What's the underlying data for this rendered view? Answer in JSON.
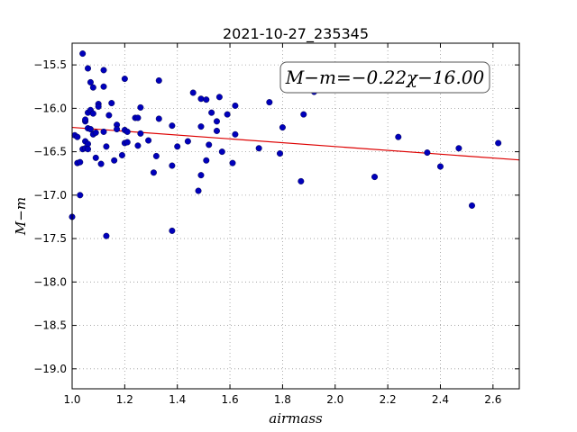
{
  "chart_data": {
    "type": "scatter",
    "title": "2021-10-27_235345",
    "xlabel": "airmass",
    "ylabel": "M−m",
    "annotation": "M−m=−0.22χ−16.00",
    "xlim": [
      1.0,
      2.7
    ],
    "ylim": [
      -19.23,
      -15.25
    ],
    "y_inverted": true,
    "grid": true,
    "x_ticks": [
      1.0,
      1.2,
      1.4,
      1.6,
      1.8,
      2.0,
      2.2,
      2.4,
      2.6
    ],
    "x_tick_labels": [
      "1.0",
      "1.2",
      "1.4",
      "1.6",
      "1.8",
      "2.0",
      "2.2",
      "2.4",
      "2.6"
    ],
    "y_ticks": [
      -15.5,
      -16.0,
      -16.5,
      -17.0,
      -17.5,
      -18.0,
      -18.5,
      -19.0
    ],
    "y_tick_labels": [
      "−15.5",
      "−16.0",
      "−16.5",
      "−17.0",
      "−17.5",
      "−18.0",
      "−18.5",
      "−19.0"
    ],
    "fit_line": {
      "slope": -0.22,
      "intercept": -16.0,
      "color": "#dd0000"
    },
    "point_color": "#0000bb",
    "points": [
      [
        1.0,
        -17.25
      ],
      [
        1.01,
        -16.31
      ],
      [
        1.02,
        -16.33
      ],
      [
        1.02,
        -16.63
      ],
      [
        1.03,
        -16.62
      ],
      [
        1.03,
        -17.0
      ],
      [
        1.04,
        -15.37
      ],
      [
        1.04,
        -16.47
      ],
      [
        1.05,
        -16.15
      ],
      [
        1.05,
        -16.38
      ],
      [
        1.05,
        -16.46
      ],
      [
        1.05,
        -16.13
      ],
      [
        1.06,
        -15.54
      ],
      [
        1.06,
        -16.05
      ],
      [
        1.06,
        -16.41
      ],
      [
        1.06,
        -16.23
      ],
      [
        1.06,
        -16.47
      ],
      [
        1.07,
        -16.02
      ],
      [
        1.07,
        -15.7
      ],
      [
        1.07,
        -16.24
      ],
      [
        1.08,
        -15.76
      ],
      [
        1.08,
        -16.3
      ],
      [
        1.08,
        -16.06
      ],
      [
        1.09,
        -16.57
      ],
      [
        1.09,
        -16.28
      ],
      [
        1.1,
        -15.95
      ],
      [
        1.1,
        -15.98
      ],
      [
        1.11,
        -16.64
      ],
      [
        1.12,
        -15.56
      ],
      [
        1.12,
        -15.75
      ],
      [
        1.12,
        -16.27
      ],
      [
        1.13,
        -16.44
      ],
      [
        1.13,
        -17.47
      ],
      [
        1.14,
        -16.08
      ],
      [
        1.15,
        -15.94
      ],
      [
        1.16,
        -16.6
      ],
      [
        1.17,
        -16.19
      ],
      [
        1.17,
        -16.24
      ],
      [
        1.19,
        -16.54
      ],
      [
        1.2,
        -15.66
      ],
      [
        1.2,
        -16.25
      ],
      [
        1.2,
        -16.4
      ],
      [
        1.21,
        -16.27
      ],
      [
        1.21,
        -16.39
      ],
      [
        1.24,
        -16.11
      ],
      [
        1.25,
        -16.11
      ],
      [
        1.25,
        -16.43
      ],
      [
        1.26,
        -15.99
      ],
      [
        1.26,
        -16.29
      ],
      [
        1.29,
        -16.37
      ],
      [
        1.31,
        -16.74
      ],
      [
        1.32,
        -16.55
      ],
      [
        1.33,
        -15.68
      ],
      [
        1.33,
        -16.12
      ],
      [
        1.38,
        -16.2
      ],
      [
        1.38,
        -16.66
      ],
      [
        1.38,
        -17.41
      ],
      [
        1.4,
        -16.44
      ],
      [
        1.44,
        -16.38
      ],
      [
        1.46,
        -15.82
      ],
      [
        1.48,
        -16.95
      ],
      [
        1.49,
        -16.21
      ],
      [
        1.49,
        -16.77
      ],
      [
        1.49,
        -15.89
      ],
      [
        1.51,
        -15.9
      ],
      [
        1.51,
        -16.6
      ],
      [
        1.52,
        -16.42
      ],
      [
        1.53,
        -16.05
      ],
      [
        1.55,
        -16.15
      ],
      [
        1.55,
        -16.26
      ],
      [
        1.56,
        -15.87
      ],
      [
        1.57,
        -16.5
      ],
      [
        1.59,
        -16.07
      ],
      [
        1.61,
        -16.63
      ],
      [
        1.62,
        -15.97
      ],
      [
        1.62,
        -16.3
      ],
      [
        1.71,
        -16.46
      ],
      [
        1.75,
        -15.93
      ],
      [
        1.79,
        -16.52
      ],
      [
        1.8,
        -16.22
      ],
      [
        1.87,
        -16.84
      ],
      [
        1.88,
        -16.07
      ],
      [
        1.92,
        -15.81
      ],
      [
        2.15,
        -16.79
      ],
      [
        2.24,
        -16.33
      ],
      [
        2.35,
        -16.51
      ],
      [
        2.4,
        -16.67
      ],
      [
        2.47,
        -16.46
      ],
      [
        2.52,
        -17.12
      ],
      [
        2.62,
        -16.4
      ]
    ]
  }
}
